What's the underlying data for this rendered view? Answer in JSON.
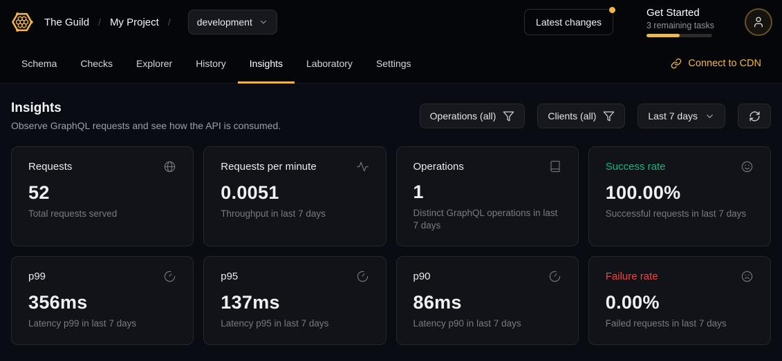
{
  "colors": {
    "accent": "#f4b740",
    "success": "#10b981",
    "danger": "#ef4444"
  },
  "header": {
    "logo_icon": "hive-logo-icon",
    "breadcrumb": {
      "org": "The Guild",
      "separator": "/",
      "project": "My Project"
    },
    "target_selector": {
      "value": "development",
      "chevron_icon": "chevron-down-icon"
    },
    "latest_changes_label": "Latest changes",
    "get_started": {
      "title": "Get Started",
      "subtitle": "3 remaining tasks",
      "progress_percent": 50
    },
    "avatar_icon": "user-icon"
  },
  "nav": {
    "tabs": [
      {
        "label": "Schema",
        "active": false
      },
      {
        "label": "Checks",
        "active": false
      },
      {
        "label": "Explorer",
        "active": false
      },
      {
        "label": "History",
        "active": false
      },
      {
        "label": "Insights",
        "active": true
      },
      {
        "label": "Laboratory",
        "active": false
      },
      {
        "label": "Settings",
        "active": false
      }
    ],
    "cdn_link": {
      "label": "Connect to CDN",
      "icon": "link-icon"
    }
  },
  "page": {
    "title": "Insights",
    "subtitle": "Observe GraphQL requests and see how the API is consumed."
  },
  "filters": {
    "operations_label": "Operations (all)",
    "clients_label": "Clients (all)",
    "period_label": "Last 7 days",
    "filter_icon": "filter-icon",
    "chevron_icon": "chevron-down-icon",
    "refresh_icon": "refresh-icon"
  },
  "cards": [
    {
      "title": "Requests",
      "value": "52",
      "description": "Total requests served",
      "icon": "globe-icon"
    },
    {
      "title": "Requests per minute",
      "value": "0.0051",
      "description": "Throughput in last 7 days",
      "icon": "activity-icon"
    },
    {
      "title": "Operations",
      "value": "1",
      "description": "Distinct GraphQL operations in last 7 days",
      "icon": "book-icon"
    },
    {
      "title": "Success rate",
      "value": "100.00%",
      "description": "Successful requests in last 7 days",
      "icon": "smile-icon",
      "title_color": "#10b981"
    },
    {
      "title": "p99",
      "value": "356ms",
      "description": "Latency p99 in last 7 days",
      "icon": "gauge-icon"
    },
    {
      "title": "p95",
      "value": "137ms",
      "description": "Latency p95 in last 7 days",
      "icon": "gauge-icon"
    },
    {
      "title": "p90",
      "value": "86ms",
      "description": "Latency p90 in last 7 days",
      "icon": "gauge-icon"
    },
    {
      "title": "Failure rate",
      "value": "0.00%",
      "description": "Failed requests in last 7 days",
      "icon": "frown-icon",
      "title_color": "#ef4444"
    }
  ]
}
